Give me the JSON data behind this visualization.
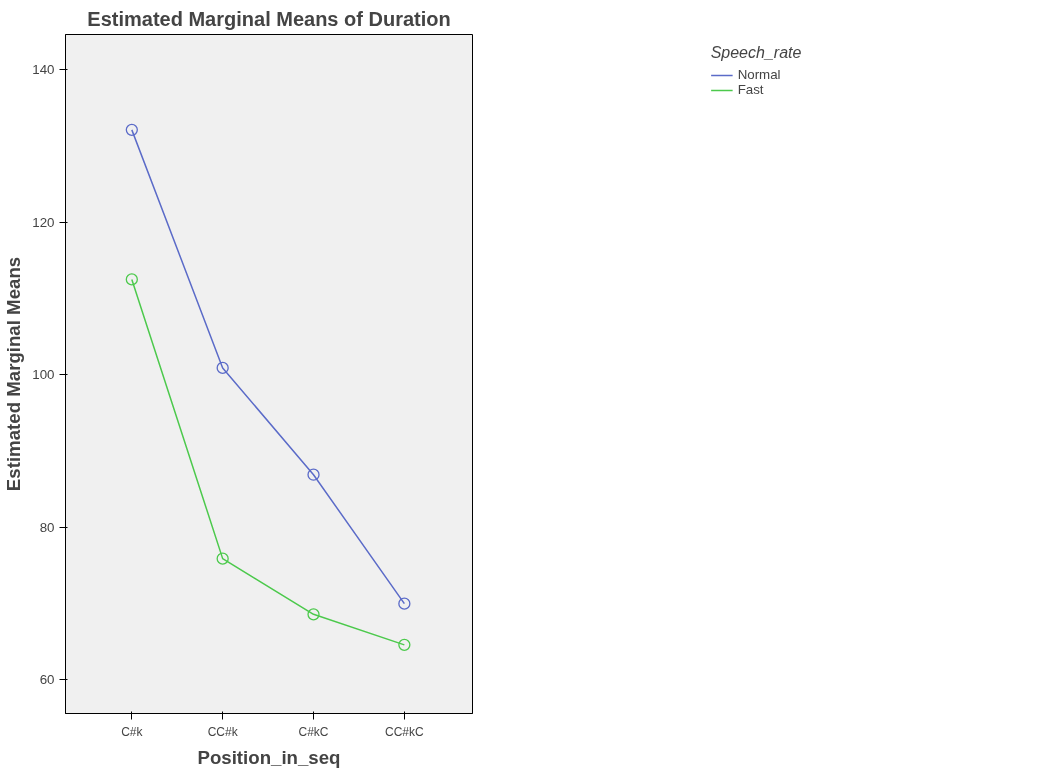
{
  "chart_data": {
    "type": "line",
    "title": "Estimated Marginal Means of Duration",
    "xlabel": "Position_in_seq",
    "ylabel": "Estimated Marginal Means",
    "legend_title": "Speech_rate",
    "categories": [
      "C#k",
      "CC#k",
      "C#kC",
      "CC#kC"
    ],
    "series": [
      {
        "name": "Normal",
        "color": "#5b6bc8",
        "values": [
          132.1,
          100.9,
          86.9,
          70.0
        ]
      },
      {
        "name": "Fast",
        "color": "#4cc94c",
        "values": [
          112.5,
          75.9,
          68.6,
          64.6
        ]
      }
    ],
    "ylim": [
      55.6,
      144.6
    ],
    "yticks": [
      60,
      80,
      100,
      120,
      140
    ],
    "grid": false,
    "legend": "top right",
    "marker": "circle",
    "line_style": "solid"
  }
}
